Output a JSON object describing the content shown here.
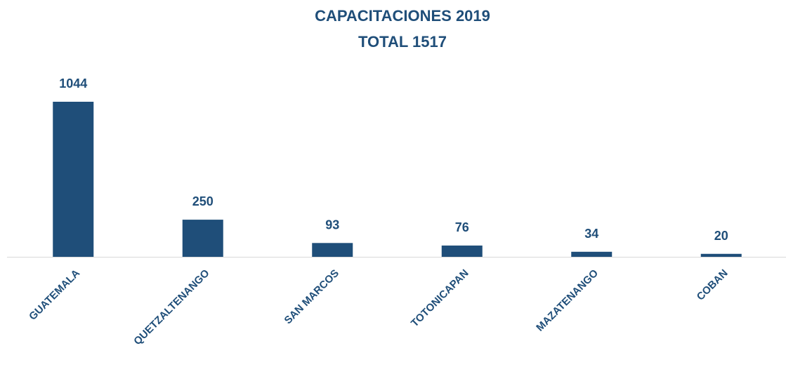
{
  "chart_data": {
    "type": "bar",
    "title": "CAPACITACIONES 2019",
    "subtitle": "TOTAL 1517",
    "categories": [
      "GUATEMALA",
      "QUETZALTENANGO",
      "SAN MARCOS",
      "TOTONICAPAN",
      "MAZATENANGO",
      "COBAN"
    ],
    "values": [
      1044,
      250,
      93,
      76,
      34,
      20
    ],
    "color": "#1f4e79",
    "data_labels": true
  }
}
